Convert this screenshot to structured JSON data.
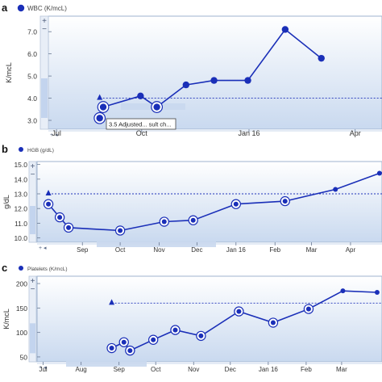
{
  "panels": [
    {
      "letter": "a",
      "title": "WBC (K/mcL)",
      "ylabel": "K/mcL",
      "tooltip": "3.5 Adjusted... sult ch...",
      "chart_data": {
        "type": "line",
        "series": [
          {
            "name": "WBC (K/mcL)",
            "x": [
              "2015-08-26",
              "2015-08-29",
              "2015-09-30",
              "2015-10-14",
              "2015-11-08",
              "2015-12-02",
              "2015-12-31",
              "2016-02-01",
              "2016-03-03"
            ],
            "y": [
              3.1,
              3.6,
              4.1,
              3.6,
              4.6,
              4.8,
              4.8,
              7.1,
              5.8
            ]
          }
        ],
        "reference": {
          "x": "2015-08-26",
          "y": 4.0
        },
        "circled": [
          0,
          1,
          3
        ],
        "x_ticks": [
          {
            "label": "Jul",
            "date": "2015-07-20"
          },
          {
            "label": "Oct",
            "date": "2015-10-01"
          },
          {
            "label": "Jan 16",
            "date": "2016-01-01"
          },
          {
            "label": "Apr",
            "date": "2016-04-01"
          }
        ],
        "y_ticks": [
          3.0,
          4.0,
          5.0,
          6.0,
          7.0
        ],
        "y_tick_labels": [
          "3.0",
          "4.0",
          "5.0",
          "6.0",
          "7.0"
        ],
        "xlim": [
          "2015-07-13",
          "2016-04-24"
        ],
        "ylim": [
          2.6,
          7.7
        ],
        "color": "#1a2fb8"
      }
    },
    {
      "letter": "b",
      "title": "HGB (g/dL)",
      "ylabel": "g/dL",
      "chart_data": {
        "type": "line",
        "series": [
          {
            "name": "HGB (g/dL)",
            "x": [
              "2015-08-05",
              "2015-08-14",
              "2015-08-21",
              "2015-10-01",
              "2015-11-05",
              "2015-11-28",
              "2016-01-01",
              "2016-02-09",
              "2016-03-20",
              "2016-04-24",
              "2016-05-14"
            ],
            "y": [
              12.3,
              11.4,
              10.7,
              10.5,
              11.1,
              11.2,
              12.3,
              12.5,
              13.3,
              14.4,
              14.7
            ]
          }
        ],
        "reference": {
          "x": "2015-08-05",
          "y": 13.0
        },
        "circled": [
          0,
          1,
          2,
          3,
          4,
          5,
          6,
          7
        ],
        "x_ticks": [
          {
            "label": "Sep",
            "date": "2015-09-01"
          },
          {
            "label": "Oct",
            "date": "2015-10-01"
          },
          {
            "label": "Nov",
            "date": "2015-11-01"
          },
          {
            "label": "Dec",
            "date": "2015-12-01"
          },
          {
            "label": "Jan 16",
            "date": "2016-01-01"
          },
          {
            "label": "Feb",
            "date": "2016-02-01"
          },
          {
            "label": "Mar",
            "date": "2016-03-01"
          },
          {
            "label": "Apr",
            "date": "2016-04-01"
          }
        ],
        "y_ticks": [
          10.0,
          11.0,
          12.0,
          13.0,
          14.0,
          15.0
        ],
        "y_tick_labels": [
          "10.0",
          "11.0",
          "12.0",
          "13.0",
          "14.0",
          "15.0"
        ],
        "xlim": [
          "2015-07-27",
          "2016-04-26"
        ],
        "ylim": [
          9.7,
          15.2
        ],
        "color": "#1a2fb8"
      }
    },
    {
      "letter": "c",
      "title": "Platelets (K/mcL)",
      "ylabel": "K/mcL",
      "chart_data": {
        "type": "line",
        "series": [
          {
            "name": "Platelets (K/mcL)",
            "x": [
              "2015-08-26",
              "2015-09-05",
              "2015-09-10",
              "2015-09-29",
              "2015-10-17",
              "2015-11-07",
              "2015-12-08",
              "2016-01-05",
              "2016-02-03",
              "2016-03-02",
              "2016-03-30"
            ],
            "y": [
              68,
              80,
              63,
              85,
              105,
              93,
              143,
              120,
              148,
              185,
              182
            ]
          }
        ],
        "reference": {
          "x": "2015-08-26",
          "y": 160
        },
        "circled": [
          0,
          1,
          2,
          3,
          4,
          5,
          6,
          7,
          8
        ],
        "x_ticks": [
          {
            "label": "Jul",
            "date": "2015-07-01"
          },
          {
            "label": "Aug",
            "date": "2015-08-01"
          },
          {
            "label": "Sep",
            "date": "2015-09-01"
          },
          {
            "label": "Oct",
            "date": "2015-10-01"
          },
          {
            "label": "Nov",
            "date": "2015-11-01"
          },
          {
            "label": "Dec",
            "date": "2015-12-01"
          },
          {
            "label": "Jan 16",
            "date": "2016-01-01"
          },
          {
            "label": "Feb",
            "date": "2016-02-01"
          },
          {
            "label": "Mar",
            "date": "2016-03-01"
          }
        ],
        "y_ticks": [
          50,
          100,
          150,
          200
        ],
        "y_tick_labels": [
          "50",
          "100",
          "150",
          "200"
        ],
        "xlim": [
          "2015-06-26",
          "2016-04-03"
        ],
        "ylim": [
          40,
          215
        ],
        "color": "#1a2fb8"
      }
    }
  ]
}
